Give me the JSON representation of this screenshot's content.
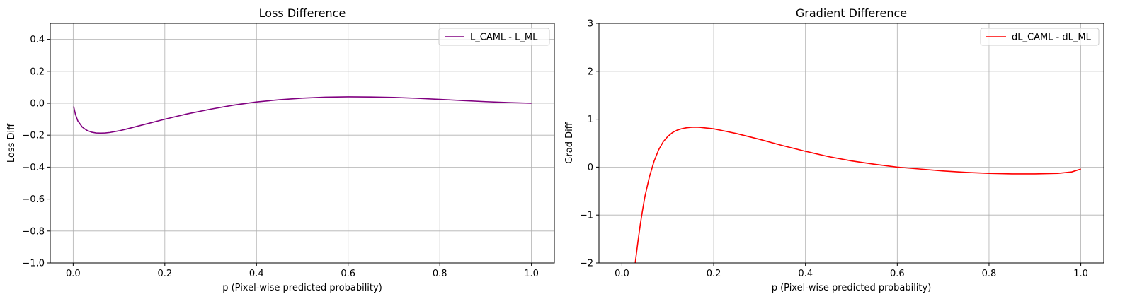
{
  "chart_data": [
    {
      "type": "line",
      "title": "Loss Difference",
      "xlabel": "p (Pixel-wise predicted probability)",
      "ylabel": "Loss Diff",
      "xlim": [
        -0.05,
        1.05
      ],
      "ylim": [
        -1.0,
        0.5
      ],
      "xticks": [
        0.0,
        0.2,
        0.4,
        0.6,
        0.8,
        1.0
      ],
      "xtick_labels": [
        "0.0",
        "0.2",
        "0.4",
        "0.6",
        "0.8",
        "1.0"
      ],
      "yticks": [
        -1.0,
        -0.8,
        -0.6,
        -0.4,
        -0.2,
        0.0,
        0.2,
        0.4
      ],
      "ytick_labels": [
        "−1.0",
        "−0.8",
        "−0.6",
        "−0.4",
        "−0.2",
        "0.0",
        "0.2",
        "0.4"
      ],
      "grid": true,
      "legend_position": "upper right",
      "series": [
        {
          "name": "L_CAML - L_ML",
          "color": "#800080",
          "x": [
            0.001,
            0.005,
            0.01,
            0.02,
            0.03,
            0.04,
            0.05,
            0.06,
            0.07,
            0.08,
            0.1,
            0.12,
            0.15,
            0.2,
            0.25,
            0.3,
            0.35,
            0.4,
            0.45,
            0.5,
            0.55,
            0.6,
            0.65,
            0.7,
            0.75,
            0.8,
            0.85,
            0.9,
            0.95,
            1.0
          ],
          "y": [
            -0.02,
            -0.07,
            -0.11,
            -0.15,
            -0.17,
            -0.181,
            -0.186,
            -0.187,
            -0.186,
            -0.183,
            -0.173,
            -0.159,
            -0.137,
            -0.1,
            -0.066,
            -0.037,
            -0.012,
            0.008,
            0.022,
            0.032,
            0.038,
            0.04,
            0.039,
            0.036,
            0.031,
            0.024,
            0.017,
            0.01,
            0.004,
            0.0
          ]
        }
      ]
    },
    {
      "type": "line",
      "title": "Gradient Difference",
      "xlabel": "p (Pixel-wise predicted probability)",
      "ylabel": "Grad Diff",
      "xlim": [
        -0.05,
        1.05
      ],
      "ylim": [
        -2,
        3
      ],
      "xticks": [
        0.0,
        0.2,
        0.4,
        0.6,
        0.8,
        1.0
      ],
      "xtick_labels": [
        "0.0",
        "0.2",
        "0.4",
        "0.6",
        "0.8",
        "1.0"
      ],
      "yticks": [
        -2,
        -1,
        0,
        1,
        2,
        3
      ],
      "ytick_labels": [
        "−2",
        "−1",
        "0",
        "1",
        "2",
        "3"
      ],
      "grid": true,
      "legend_position": "upper right",
      "series": [
        {
          "name": "dL_CAML - dL_ML",
          "color": "#ff0000",
          "x": [
            0.029,
            0.035,
            0.04,
            0.045,
            0.05,
            0.06,
            0.07,
            0.08,
            0.09,
            0.1,
            0.11,
            0.12,
            0.13,
            0.14,
            0.15,
            0.16,
            0.17,
            0.18,
            0.2,
            0.22,
            0.25,
            0.3,
            0.35,
            0.4,
            0.45,
            0.5,
            0.55,
            0.6,
            0.65,
            0.7,
            0.75,
            0.8,
            0.85,
            0.9,
            0.95,
            0.98,
            1.0
          ],
          "y": [
            -2.0,
            -1.55,
            -1.2,
            -0.9,
            -0.62,
            -0.2,
            0.12,
            0.36,
            0.53,
            0.64,
            0.72,
            0.77,
            0.8,
            0.82,
            0.83,
            0.835,
            0.83,
            0.82,
            0.8,
            0.76,
            0.7,
            0.58,
            0.45,
            0.33,
            0.22,
            0.13,
            0.06,
            0.0,
            -0.04,
            -0.08,
            -0.11,
            -0.13,
            -0.14,
            -0.14,
            -0.13,
            -0.1,
            -0.04
          ]
        }
      ]
    }
  ]
}
